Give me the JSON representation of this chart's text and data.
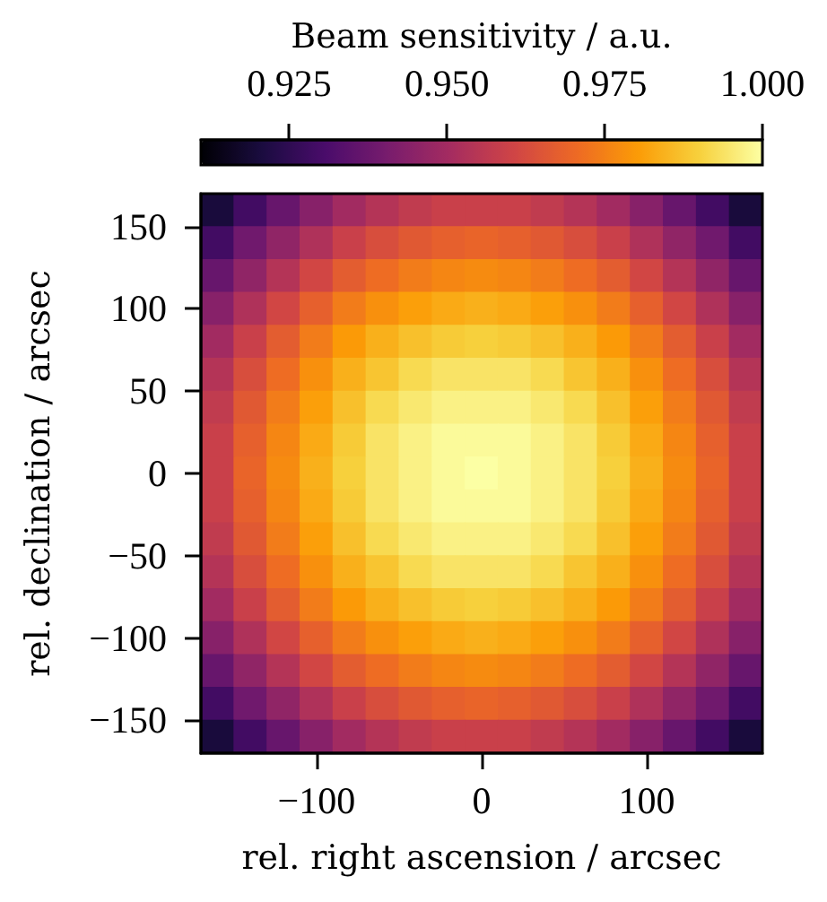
{
  "chart_data": {
    "type": "heatmap",
    "xlabel": "rel. right ascension / arcsec",
    "ylabel": "rel. declination / arcsec",
    "clabel": "Beam sensitivity / a.u.",
    "xlim": [
      -170,
      170
    ],
    "xticks": [
      {
        "value": -100,
        "label": "−100"
      },
      0,
      100
    ],
    "ylim": [
      -170,
      170
    ],
    "yticks": [
      {
        "value": -150,
        "label": "−150"
      },
      {
        "value": -100,
        "label": "−100"
      },
      {
        "value": -50,
        "label": "−50"
      },
      0,
      50,
      100,
      150
    ],
    "clim": [
      0.911,
      1.0
    ],
    "cticks": [
      0.925,
      {
        "value": 0.95,
        "label": "0.950"
      },
      0.975,
      {
        "value": 1.0,
        "label": "1.000"
      }
    ],
    "cells": [
      [
        0.92,
        0.929,
        0.937,
        0.944,
        0.95,
        0.954,
        0.957,
        0.959,
        0.959,
        0.959,
        0.957,
        0.954,
        0.95,
        0.944,
        0.937,
        0.929,
        0.92
      ],
      [
        0.929,
        0.939,
        0.946,
        0.953,
        0.959,
        0.963,
        0.966,
        0.968,
        0.969,
        0.968,
        0.966,
        0.963,
        0.959,
        0.953,
        0.946,
        0.939,
        0.929
      ],
      [
        0.937,
        0.946,
        0.954,
        0.961,
        0.967,
        0.971,
        0.974,
        0.976,
        0.977,
        0.976,
        0.974,
        0.971,
        0.967,
        0.961,
        0.954,
        0.946,
        0.937
      ],
      [
        0.944,
        0.953,
        0.961,
        0.968,
        0.974,
        0.978,
        0.981,
        0.983,
        0.984,
        0.983,
        0.981,
        0.978,
        0.974,
        0.968,
        0.961,
        0.953,
        0.944
      ],
      [
        0.95,
        0.959,
        0.967,
        0.974,
        0.98,
        0.984,
        0.987,
        0.989,
        0.99,
        0.989,
        0.987,
        0.984,
        0.98,
        0.974,
        0.967,
        0.959,
        0.95
      ],
      [
        0.954,
        0.963,
        0.971,
        0.978,
        0.984,
        0.988,
        0.992,
        0.994,
        0.994,
        0.994,
        0.992,
        0.988,
        0.984,
        0.978,
        0.971,
        0.963,
        0.954
      ],
      [
        0.957,
        0.966,
        0.974,
        0.981,
        0.987,
        0.992,
        0.995,
        0.997,
        0.997,
        0.997,
        0.995,
        0.992,
        0.987,
        0.981,
        0.974,
        0.966,
        0.957
      ],
      [
        0.959,
        0.968,
        0.976,
        0.983,
        0.989,
        0.994,
        0.997,
        0.999,
        0.999,
        0.999,
        0.997,
        0.994,
        0.989,
        0.983,
        0.976,
        0.968,
        0.959
      ],
      [
        0.959,
        0.969,
        0.977,
        0.984,
        0.99,
        0.994,
        0.997,
        0.999,
        1.0,
        0.999,
        0.997,
        0.994,
        0.99,
        0.984,
        0.977,
        0.969,
        0.959
      ],
      [
        0.959,
        0.968,
        0.976,
        0.983,
        0.989,
        0.994,
        0.997,
        0.999,
        0.999,
        0.999,
        0.997,
        0.994,
        0.989,
        0.983,
        0.976,
        0.968,
        0.959
      ],
      [
        0.957,
        0.966,
        0.974,
        0.981,
        0.987,
        0.992,
        0.995,
        0.997,
        0.997,
        0.997,
        0.995,
        0.992,
        0.987,
        0.981,
        0.974,
        0.966,
        0.957
      ],
      [
        0.954,
        0.963,
        0.971,
        0.978,
        0.984,
        0.988,
        0.992,
        0.994,
        0.994,
        0.994,
        0.992,
        0.988,
        0.984,
        0.978,
        0.971,
        0.963,
        0.954
      ],
      [
        0.95,
        0.959,
        0.967,
        0.974,
        0.98,
        0.984,
        0.987,
        0.989,
        0.99,
        0.989,
        0.987,
        0.984,
        0.98,
        0.974,
        0.967,
        0.959,
        0.95
      ],
      [
        0.944,
        0.953,
        0.961,
        0.968,
        0.974,
        0.978,
        0.981,
        0.983,
        0.984,
        0.983,
        0.981,
        0.978,
        0.974,
        0.968,
        0.961,
        0.953,
        0.944
      ],
      [
        0.937,
        0.946,
        0.954,
        0.961,
        0.967,
        0.971,
        0.974,
        0.976,
        0.977,
        0.976,
        0.974,
        0.971,
        0.967,
        0.961,
        0.954,
        0.946,
        0.937
      ],
      [
        0.929,
        0.939,
        0.946,
        0.953,
        0.959,
        0.963,
        0.966,
        0.968,
        0.969,
        0.968,
        0.966,
        0.963,
        0.959,
        0.953,
        0.946,
        0.939,
        0.929
      ],
      [
        0.92,
        0.929,
        0.937,
        0.944,
        0.95,
        0.954,
        0.957,
        0.959,
        0.959,
        0.959,
        0.957,
        0.954,
        0.95,
        0.944,
        0.937,
        0.929,
        0.92
      ]
    ]
  }
}
